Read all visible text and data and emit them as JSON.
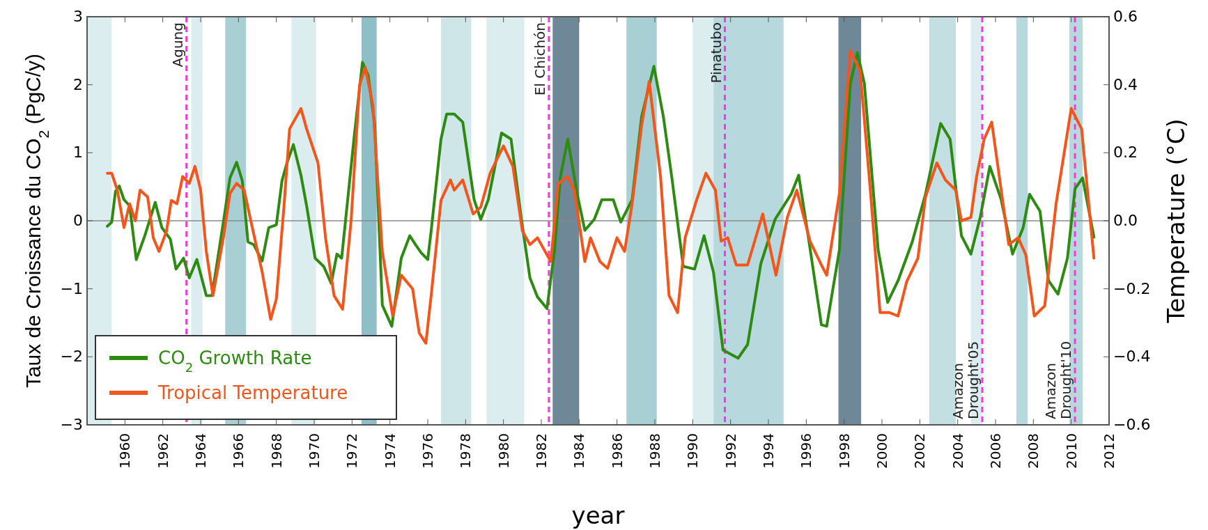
{
  "chart_data": {
    "type": "line",
    "xlabel": "year",
    "ylabel": "Taux de Croissance du CO$_{2}$ (PgC/y)",
    "y2label": "Temperature (°C)",
    "xlim": [
      1958,
      2012
    ],
    "xticks": [
      1960,
      1962,
      1964,
      1966,
      1968,
      1970,
      1972,
      1974,
      1976,
      1978,
      1980,
      1982,
      1984,
      1986,
      1988,
      1990,
      1992,
      1994,
      1996,
      1998,
      2000,
      2002,
      2004,
      2006,
      2008,
      2010,
      2012
    ],
    "ylim": [
      -3,
      3
    ],
    "yticks": [
      {
        "value": -3,
        "label": "−3"
      },
      {
        "value": -2,
        "label": "−2"
      },
      {
        "value": -1,
        "label": "−1"
      },
      0,
      1,
      2,
      3
    ],
    "y2lim": [
      -0.6,
      0.6
    ],
    "y2ticks": [
      {
        "value": -0.6,
        "label": "−0.6"
      },
      {
        "value": -0.4,
        "label": "−0.4"
      },
      {
        "value": -0.2,
        "label": "−0.2"
      },
      {
        "value": 0,
        "label": "0.0"
      },
      0.2,
      0.4,
      0.6
    ],
    "legend": "bottom left",
    "grid": false,
    "line_style": "solid",
    "series": [
      {
        "name": "CO$_{2}$ Growth Rate",
        "color": "#2e8b12",
        "x": [
          1959.07,
          1959.3,
          1959.5,
          1959.7,
          1959.95,
          1960.25,
          1960.6,
          1961.05,
          1961.6,
          1961.95,
          1962.4,
          1962.7,
          1963.1,
          1963.4,
          1963.8,
          1964.3,
          1964.6,
          1965.2,
          1965.55,
          1965.9,
          1966.2,
          1966.5,
          1966.8,
          1967.25,
          1967.6,
          1968.0,
          1968.3,
          1968.55,
          1968.9,
          1969.3,
          1969.6,
          1970.05,
          1970.5,
          1970.9,
          1971.2,
          1971.45,
          1971.8,
          1972.1,
          1972.55,
          1972.85,
          1973.2,
          1973.6,
          1974.1,
          1974.6,
          1975.05,
          1975.35,
          1975.65,
          1976.0,
          1976.2,
          1976.7,
          1977.0,
          1977.4,
          1977.85,
          1978.45,
          1978.8,
          1979.2,
          1979.9,
          1980.4,
          1980.95,
          1981.4,
          1981.8,
          1982.3,
          1982.7,
          1983.0,
          1983.4,
          1983.9,
          1984.3,
          1984.8,
          1985.2,
          1985.8,
          1986.2,
          1986.8,
          1987.3,
          1987.95,
          1988.45,
          1988.9,
          1989.5,
          1990.1,
          1990.6,
          1991.1,
          1991.6,
          1992.4,
          1992.9,
          1993.6,
          1994.35,
          1995.2,
          1995.6,
          1996.1,
          1996.8,
          1997.08,
          1997.75,
          1998.33,
          1998.7,
          1999.07,
          1999.8,
          2000.3,
          2000.85,
          2001.6,
          2002.3,
          2003.1,
          2003.6,
          2004.2,
          2004.7,
          2005.2,
          2005.7,
          2006.3,
          2006.9,
          2007.46,
          2007.8,
          2008.35,
          2008.8,
          2009.3,
          2009.8,
          2010.2,
          2010.6,
          2011.2
        ],
        "values": [
          -0.08,
          -0.02,
          0.43,
          0.51,
          0.31,
          0.22,
          -0.57,
          -0.22,
          0.27,
          -0.1,
          -0.27,
          -0.71,
          -0.55,
          -0.84,
          -0.57,
          -1.1,
          -1.1,
          -0.02,
          0.63,
          0.86,
          0.59,
          -0.31,
          -0.35,
          -0.59,
          -0.1,
          -0.06,
          0.59,
          0.84,
          1.12,
          0.67,
          0.22,
          -0.55,
          -0.67,
          -0.92,
          -0.49,
          -0.55,
          0.39,
          1.2,
          2.33,
          2.14,
          1.41,
          -1.24,
          -1.55,
          -0.55,
          -0.22,
          -0.35,
          -0.47,
          -0.57,
          -0.1,
          1.2,
          1.57,
          1.57,
          1.45,
          0.31,
          0.02,
          0.31,
          1.29,
          1.2,
          0.02,
          -0.84,
          -1.12,
          -1.29,
          -0.43,
          0.63,
          1.2,
          0.39,
          -0.14,
          0.02,
          0.31,
          0.31,
          -0.02,
          0.31,
          1.53,
          2.27,
          1.53,
          0.63,
          -0.67,
          -0.71,
          -0.22,
          -0.76,
          -1.9,
          -2.02,
          -1.82,
          -0.63,
          0.02,
          0.39,
          0.67,
          -0.22,
          -1.53,
          -1.55,
          -0.43,
          2.02,
          2.47,
          2.02,
          -0.43,
          -1.2,
          -0.88,
          -0.31,
          0.39,
          1.43,
          1.2,
          -0.22,
          -0.49,
          0.06,
          0.8,
          0.31,
          -0.49,
          -0.1,
          0.39,
          0.14,
          -0.88,
          -1.08,
          -0.55,
          0.47,
          0.63,
          -0.24
        ]
      },
      {
        "name": "Tropical Temperature",
        "color": "#f2561d",
        "axis": "y2",
        "x": [
          1959.07,
          1959.3,
          1959.6,
          1959.95,
          1960.25,
          1960.55,
          1960.8,
          1961.2,
          1961.5,
          1961.8,
          1962.2,
          1962.45,
          1962.75,
          1963.05,
          1963.4,
          1963.7,
          1964.0,
          1964.3,
          1964.65,
          1965.2,
          1965.55,
          1965.9,
          1966.3,
          1966.65,
          1967.25,
          1967.7,
          1968.0,
          1968.4,
          1968.7,
          1969.3,
          1969.6,
          1970.2,
          1970.6,
          1971.05,
          1971.5,
          1971.95,
          1972.4,
          1972.7,
          1973.1,
          1973.6,
          1974.15,
          1974.6,
          1975.2,
          1975.55,
          1975.9,
          1976.2,
          1976.7,
          1977.2,
          1977.4,
          1977.85,
          1978.4,
          1978.8,
          1979.3,
          1980.0,
          1980.5,
          1981.0,
          1981.4,
          1981.8,
          1982.5,
          1982.9,
          1983.4,
          1983.75,
          1984.3,
          1984.6,
          1985.1,
          1985.5,
          1986.0,
          1986.4,
          1986.8,
          1987.3,
          1987.7,
          1988.3,
          1988.75,
          1989.2,
          1989.6,
          1990.2,
          1990.7,
          1991.2,
          1991.5,
          1991.85,
          1992.3,
          1992.9,
          1993.7,
          1994.4,
          1995.0,
          1995.5,
          1996.2,
          1996.8,
          1997.08,
          1997.75,
          1998.33,
          1998.85,
          1999.4,
          1999.9,
          2000.4,
          2000.85,
          2001.3,
          2001.9,
          2002.3,
          2002.9,
          2003.35,
          2003.9,
          2004.2,
          2004.7,
          2005.0,
          2005.4,
          2005.8,
          2006.3,
          2006.7,
          2007.2,
          2007.6,
          2008.05,
          2008.6,
          2009.2,
          2010.0,
          2010.55,
          2011.2
        ],
        "values": [
          0.14,
          0.14,
          0.09,
          -0.02,
          0.05,
          0.0,
          0.09,
          0.07,
          -0.05,
          -0.09,
          -0.03,
          0.06,
          0.05,
          0.13,
          0.11,
          0.16,
          0.09,
          -0.09,
          -0.22,
          -0.05,
          0.08,
          0.11,
          0.09,
          0.0,
          -0.15,
          -0.29,
          -0.23,
          0.04,
          0.27,
          0.33,
          0.27,
          0.17,
          -0.05,
          -0.22,
          -0.26,
          0.0,
          0.4,
          0.45,
          0.34,
          -0.09,
          -0.28,
          -0.16,
          -0.2,
          -0.33,
          -0.36,
          -0.21,
          0.06,
          0.12,
          0.09,
          0.12,
          0.02,
          0.04,
          0.14,
          0.22,
          0.16,
          -0.03,
          -0.07,
          -0.05,
          -0.12,
          0.11,
          0.13,
          0.09,
          -0.12,
          -0.05,
          -0.12,
          -0.14,
          -0.05,
          -0.09,
          0.05,
          0.28,
          0.41,
          0.13,
          -0.22,
          -0.27,
          -0.05,
          0.06,
          0.14,
          0.09,
          -0.06,
          -0.05,
          -0.13,
          -0.13,
          0.02,
          -0.16,
          0.01,
          0.09,
          -0.06,
          -0.13,
          -0.16,
          0.08,
          0.5,
          0.44,
          0.08,
          -0.27,
          -0.27,
          -0.28,
          -0.18,
          -0.11,
          0.07,
          0.17,
          0.12,
          0.09,
          0.0,
          0.01,
          0.13,
          0.24,
          0.29,
          0.09,
          -0.07,
          -0.05,
          -0.1,
          -0.28,
          -0.25,
          0.05,
          0.33,
          0.27,
          -0.11
        ]
      }
    ],
    "ref_lines": [
      {
        "axis": "y",
        "value": 0,
        "color": "#888888",
        "line_style": "solid"
      },
      {
        "axis": "x",
        "value": 1963.25,
        "label": "Agung",
        "color": "#f03cdc",
        "line_style": "dashed"
      },
      {
        "axis": "x",
        "value": 1982.4,
        "label": "El Chichón",
        "color": "#f03cdc",
        "line_style": "dashed"
      },
      {
        "axis": "x",
        "value": 1991.7,
        "label": "Pinatubo",
        "color": "#f03cdc",
        "line_style": "dashed"
      },
      {
        "axis": "x",
        "value": 2005.3,
        "label": "Amazon\nDrought'05",
        "color": "#f03cdc",
        "line_style": "dashed"
      },
      {
        "axis": "x",
        "value": 2010.2,
        "label": "Amazon\nDrought'10",
        "color": "#f03cdc",
        "line_style": "dashed"
      }
    ],
    "bands": [
      {
        "axis": "x",
        "from": 1958.0,
        "to": 1959.3,
        "color": "#dcedef"
      },
      {
        "axis": "x",
        "from": 1963.5,
        "to": 1964.1,
        "color": "#dcedef"
      },
      {
        "axis": "x",
        "from": 1965.3,
        "to": 1966.4,
        "color": "#a8cfd4"
      },
      {
        "axis": "x",
        "from": 1968.8,
        "to": 1970.1,
        "color": "#dcedef"
      },
      {
        "axis": "x",
        "from": 1972.5,
        "to": 1973.3,
        "color": "#8fbfc6"
      },
      {
        "axis": "x",
        "from": 1976.7,
        "to": 1978.3,
        "color": "#cfe6e9"
      },
      {
        "axis": "x",
        "from": 1979.1,
        "to": 1981.1,
        "color": "#dcedef"
      },
      {
        "axis": "x",
        "from": 1982.6,
        "to": 1984.0,
        "color": "#6e8898"
      },
      {
        "axis": "x",
        "from": 1986.5,
        "to": 1988.1,
        "color": "#a8cfd4"
      },
      {
        "axis": "x",
        "from": 1990.0,
        "to": 1991.1,
        "color": "#dcedef"
      },
      {
        "axis": "x",
        "from": 1991.1,
        "to": 1994.8,
        "color": "#b7d8dc"
      },
      {
        "axis": "x",
        "from": 1997.7,
        "to": 1998.9,
        "color": "#6e8898"
      },
      {
        "axis": "x",
        "from": 2002.5,
        "to": 2003.9,
        "color": "#c3dfe2"
      },
      {
        "axis": "x",
        "from": 2004.7,
        "to": 2005.3,
        "color": "#dcedef"
      },
      {
        "axis": "x",
        "from": 2007.1,
        "to": 2007.7,
        "color": "#b7d8dc"
      },
      {
        "axis": "x",
        "from": 2009.9,
        "to": 2010.6,
        "color": "#b7d8dc"
      }
    ]
  }
}
